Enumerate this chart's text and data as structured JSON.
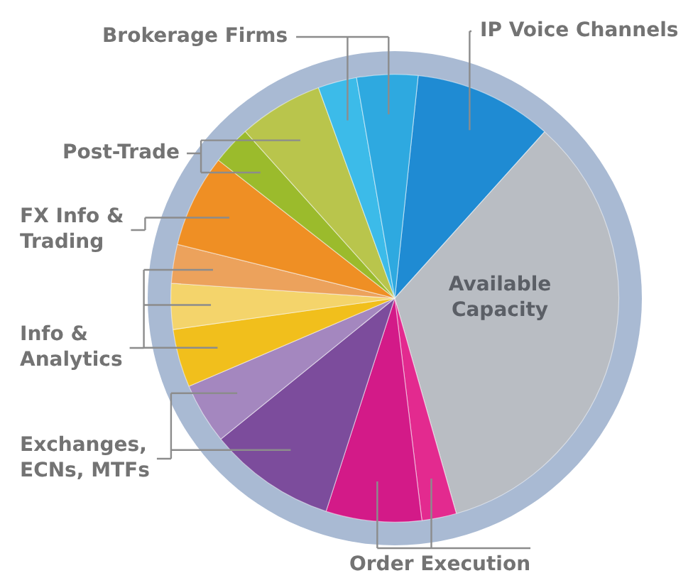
{
  "chart_data": {
    "type": "pie",
    "categories": [
      "IP Voice Channels",
      "Available Capacity",
      "Order Execution",
      null,
      null,
      "Exchanges, ECNs, MTFs",
      "Info & Analytics",
      null,
      null,
      "FX Info & Trading",
      "Post-Trade",
      null,
      "Brokerage Firms",
      null
    ],
    "values": [
      10,
      33.9,
      2.5,
      6.9,
      9.2,
      4.4,
      4.2,
      3.3,
      2.8,
      6.7,
      2.8,
      6.1,
      2.8,
      4.4
    ],
    "colors": [
      "#1f8bd3",
      "#b9bdc3",
      "#e32a8f",
      "#d31a88",
      "#7c4c9c",
      "#a487bf",
      "#f1bf1c",
      "#f4d46b",
      "#eca25c",
      "#ef8f24",
      "#9bbb2c",
      "#b9c54c",
      "#3cbbe9",
      "#2ea9e0"
    ],
    "legend": false
  }
}
